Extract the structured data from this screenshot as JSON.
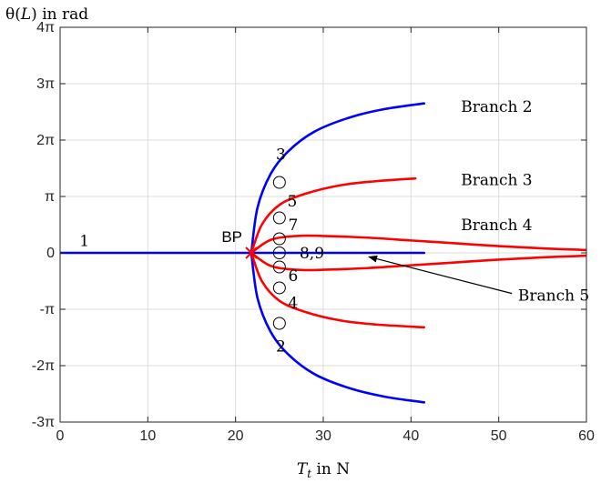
{
  "chart_data": {
    "type": "line",
    "xlabel": "T_t in N",
    "xlabel_main": "T",
    "xlabel_sub": "t",
    "xlabel_unit": " in N",
    "ylabel": "θ(L) in rad",
    "ylabel_pre": "θ(",
    "ylabel_var": "L",
    "ylabel_post": ") in rad",
    "xlim": [
      0,
      60
    ],
    "ylim": [
      -3,
      4
    ],
    "y_unit": "π",
    "grid": true,
    "x_ticks": [
      0,
      10,
      20,
      30,
      40,
      50,
      60
    ],
    "x_tick_labels": [
      "0",
      "10",
      "20",
      "30",
      "40",
      "50",
      "60"
    ],
    "y_ticks": [
      -3,
      -2,
      -1,
      0,
      1,
      2,
      3,
      4
    ],
    "y_tick_labels": [
      "-3π",
      "-2π",
      "-π",
      "0",
      "π",
      "2π",
      "3π",
      "4π"
    ],
    "bifurcation_point": {
      "label": "BP",
      "x": 21.8,
      "y": 0,
      "marker": "x",
      "color": "#ff0000"
    },
    "series": [
      {
        "color": "#0000ff",
        "x": [
          0,
          41.5
        ],
        "y": [
          0,
          0
        ]
      },
      {
        "color": "#0000ff",
        "x": [
          21.8,
          22.5,
          24,
          26,
          29,
          33,
          37,
          41.5
        ],
        "y": [
          0,
          0.8,
          1.4,
          1.8,
          2.15,
          2.4,
          2.55,
          2.65
        ]
      },
      {
        "color": "#0000ff",
        "x": [
          21.8,
          22.5,
          24,
          26,
          29,
          33,
          37,
          41.5
        ],
        "y": [
          0,
          -0.8,
          -1.4,
          -1.8,
          -2.15,
          -2.4,
          -2.55,
          -2.65
        ]
      },
      {
        "color": "#ff0000",
        "x": [
          21.8,
          23,
          25,
          28,
          32,
          36,
          40.5
        ],
        "y": [
          0,
          0.5,
          0.85,
          1.05,
          1.2,
          1.27,
          1.32
        ]
      },
      {
        "color": "#ff0000",
        "x": [
          21.8,
          23,
          25,
          28,
          32,
          36,
          41.5
        ],
        "y": [
          0,
          -0.5,
          -0.85,
          -1.05,
          -1.2,
          -1.27,
          -1.32
        ]
      },
      {
        "color": "#ff0000",
        "x": [
          21.8,
          24,
          27,
          30,
          35,
          40,
          45,
          50,
          55,
          60
        ],
        "y": [
          0,
          0.23,
          0.3,
          0.3,
          0.27,
          0.22,
          0.17,
          0.12,
          0.08,
          0.05
        ]
      },
      {
        "color": "#ff0000",
        "x": [
          21.8,
          24,
          27,
          30,
          35,
          40,
          45,
          50,
          55,
          60
        ],
        "y": [
          0,
          -0.23,
          -0.3,
          -0.3,
          -0.27,
          -0.22,
          -0.17,
          -0.12,
          -0.08,
          -0.05
        ]
      }
    ],
    "circle_markers": [
      {
        "x": 25,
        "y": 1.25
      },
      {
        "x": 25,
        "y": 0.62
      },
      {
        "x": 25,
        "y": 0.25
      },
      {
        "x": 25,
        "y": 0
      },
      {
        "x": 25,
        "y": -0.25
      },
      {
        "x": 25,
        "y": -0.62
      },
      {
        "x": 25,
        "y": -1.25
      }
    ],
    "point_labels": [
      {
        "text": "1",
        "x": 2.2,
        "y": 0.22
      },
      {
        "text": "3",
        "x": 24.6,
        "y": 1.75
      },
      {
        "text": "5",
        "x": 25.9,
        "y": 0.92
      },
      {
        "text": "7",
        "x": 26.0,
        "y": 0.5
      },
      {
        "text": "8,9",
        "x": 27.3,
        "y": 0
      },
      {
        "text": "6",
        "x": 26.0,
        "y": -0.4
      },
      {
        "text": "4",
        "x": 26.0,
        "y": -0.88
      },
      {
        "text": "2",
        "x": 24.6,
        "y": -1.65
      }
    ],
    "branch_labels": [
      {
        "text": "Branch 2",
        "x": 45.7,
        "y": 2.6
      },
      {
        "text": "Branch 3",
        "x": 45.7,
        "y": 1.3
      },
      {
        "text": "Branch 4",
        "x": 45.7,
        "y": 0.5
      },
      {
        "text": "Branch 5",
        "x": 52.2,
        "y": -0.75
      }
    ],
    "annotation_arrow": {
      "from": [
        51.5,
        -0.72
      ],
      "to": [
        35.2,
        -0.07
      ]
    }
  }
}
